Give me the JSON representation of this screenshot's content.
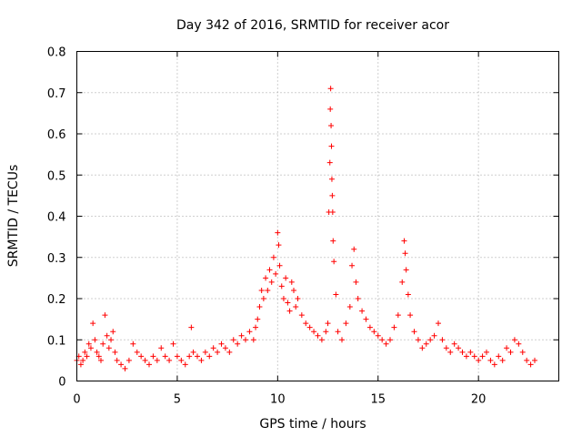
{
  "chart_data": {
    "type": "scatter",
    "title": "Day 342 of 2016, SRMTID for receiver acor",
    "xlabel": "GPS time / hours",
    "ylabel": "SRMTID / TECUs",
    "xlim": [
      0,
      24
    ],
    "ylim": [
      0,
      0.8
    ],
    "x_ticks": [
      0,
      5,
      10,
      15,
      20
    ],
    "y_ticks": [
      0,
      0.1,
      0.2,
      0.3,
      0.4,
      0.5,
      0.6,
      0.7,
      0.8
    ],
    "marker": "+",
    "color": "#ff0000",
    "grid": true,
    "series": [
      {
        "name": "SRMTID",
        "points": [
          [
            0.0,
            0.05
          ],
          [
            0.1,
            0.06
          ],
          [
            0.2,
            0.04
          ],
          [
            0.3,
            0.05
          ],
          [
            0.4,
            0.07
          ],
          [
            0.5,
            0.06
          ],
          [
            0.6,
            0.09
          ],
          [
            0.7,
            0.08
          ],
          [
            0.8,
            0.14
          ],
          [
            0.9,
            0.1
          ],
          [
            1.0,
            0.07
          ],
          [
            1.1,
            0.06
          ],
          [
            1.2,
            0.05
          ],
          [
            1.3,
            0.09
          ],
          [
            1.4,
            0.16
          ],
          [
            1.5,
            0.11
          ],
          [
            1.6,
            0.08
          ],
          [
            1.7,
            0.1
          ],
          [
            1.8,
            0.12
          ],
          [
            1.9,
            0.07
          ],
          [
            2.0,
            0.05
          ],
          [
            2.2,
            0.04
          ],
          [
            2.4,
            0.03
          ],
          [
            2.6,
            0.05
          ],
          [
            2.8,
            0.09
          ],
          [
            3.0,
            0.07
          ],
          [
            3.2,
            0.06
          ],
          [
            3.4,
            0.05
          ],
          [
            3.6,
            0.04
          ],
          [
            3.8,
            0.06
          ],
          [
            4.0,
            0.05
          ],
          [
            4.2,
            0.08
          ],
          [
            4.4,
            0.06
          ],
          [
            4.6,
            0.05
          ],
          [
            4.8,
            0.09
          ],
          [
            5.0,
            0.06
          ],
          [
            5.2,
            0.05
          ],
          [
            5.4,
            0.04
          ],
          [
            5.6,
            0.06
          ],
          [
            5.7,
            0.13
          ],
          [
            5.8,
            0.07
          ],
          [
            6.0,
            0.06
          ],
          [
            6.2,
            0.05
          ],
          [
            6.4,
            0.07
          ],
          [
            6.6,
            0.06
          ],
          [
            6.8,
            0.08
          ],
          [
            7.0,
            0.07
          ],
          [
            7.2,
            0.09
          ],
          [
            7.4,
            0.08
          ],
          [
            7.6,
            0.07
          ],
          [
            7.8,
            0.1
          ],
          [
            8.0,
            0.09
          ],
          [
            8.2,
            0.11
          ],
          [
            8.4,
            0.1
          ],
          [
            8.6,
            0.12
          ],
          [
            8.8,
            0.1
          ],
          [
            8.9,
            0.13
          ],
          [
            9.0,
            0.15
          ],
          [
            9.1,
            0.18
          ],
          [
            9.2,
            0.22
          ],
          [
            9.3,
            0.2
          ],
          [
            9.4,
            0.25
          ],
          [
            9.5,
            0.22
          ],
          [
            9.6,
            0.27
          ],
          [
            9.7,
            0.24
          ],
          [
            9.8,
            0.3
          ],
          [
            9.9,
            0.26
          ],
          [
            10.0,
            0.36
          ],
          [
            10.05,
            0.33
          ],
          [
            10.1,
            0.28
          ],
          [
            10.2,
            0.23
          ],
          [
            10.3,
            0.2
          ],
          [
            10.4,
            0.25
          ],
          [
            10.5,
            0.19
          ],
          [
            10.6,
            0.17
          ],
          [
            10.7,
            0.24
          ],
          [
            10.8,
            0.22
          ],
          [
            10.9,
            0.18
          ],
          [
            11.0,
            0.2
          ],
          [
            11.2,
            0.16
          ],
          [
            11.4,
            0.14
          ],
          [
            11.6,
            0.13
          ],
          [
            11.8,
            0.12
          ],
          [
            12.0,
            0.11
          ],
          [
            12.2,
            0.1
          ],
          [
            12.4,
            0.12
          ],
          [
            12.5,
            0.14
          ],
          [
            12.55,
            0.41
          ],
          [
            12.6,
            0.53
          ],
          [
            12.62,
            0.66
          ],
          [
            12.64,
            0.71
          ],
          [
            12.66,
            0.62
          ],
          [
            12.68,
            0.57
          ],
          [
            12.7,
            0.49
          ],
          [
            12.72,
            0.45
          ],
          [
            12.74,
            0.41
          ],
          [
            12.76,
            0.34
          ],
          [
            12.8,
            0.29
          ],
          [
            12.9,
            0.21
          ],
          [
            13.0,
            0.12
          ],
          [
            13.2,
            0.1
          ],
          [
            13.4,
            0.14
          ],
          [
            13.6,
            0.18
          ],
          [
            13.7,
            0.28
          ],
          [
            13.8,
            0.32
          ],
          [
            13.9,
            0.24
          ],
          [
            14.0,
            0.2
          ],
          [
            14.2,
            0.17
          ],
          [
            14.4,
            0.15
          ],
          [
            14.6,
            0.13
          ],
          [
            14.8,
            0.12
          ],
          [
            15.0,
            0.11
          ],
          [
            15.2,
            0.1
          ],
          [
            15.4,
            0.09
          ],
          [
            15.6,
            0.1
          ],
          [
            15.8,
            0.13
          ],
          [
            16.0,
            0.16
          ],
          [
            16.2,
            0.24
          ],
          [
            16.3,
            0.34
          ],
          [
            16.35,
            0.31
          ],
          [
            16.4,
            0.27
          ],
          [
            16.5,
            0.21
          ],
          [
            16.6,
            0.16
          ],
          [
            16.8,
            0.12
          ],
          [
            17.0,
            0.1
          ],
          [
            17.2,
            0.08
          ],
          [
            17.4,
            0.09
          ],
          [
            17.6,
            0.1
          ],
          [
            17.8,
            0.11
          ],
          [
            18.0,
            0.14
          ],
          [
            18.2,
            0.1
          ],
          [
            18.4,
            0.08
          ],
          [
            18.6,
            0.07
          ],
          [
            18.8,
            0.09
          ],
          [
            19.0,
            0.08
          ],
          [
            19.2,
            0.07
          ],
          [
            19.4,
            0.06
          ],
          [
            19.6,
            0.07
          ],
          [
            19.8,
            0.06
          ],
          [
            20.0,
            0.05
          ],
          [
            20.2,
            0.06
          ],
          [
            20.4,
            0.07
          ],
          [
            20.6,
            0.05
          ],
          [
            20.8,
            0.04
          ],
          [
            21.0,
            0.06
          ],
          [
            21.2,
            0.05
          ],
          [
            21.4,
            0.08
          ],
          [
            21.6,
            0.07
          ],
          [
            21.8,
            0.1
          ],
          [
            22.0,
            0.09
          ],
          [
            22.2,
            0.07
          ],
          [
            22.4,
            0.05
          ],
          [
            22.6,
            0.04
          ],
          [
            22.8,
            0.05
          ]
        ]
      }
    ]
  }
}
